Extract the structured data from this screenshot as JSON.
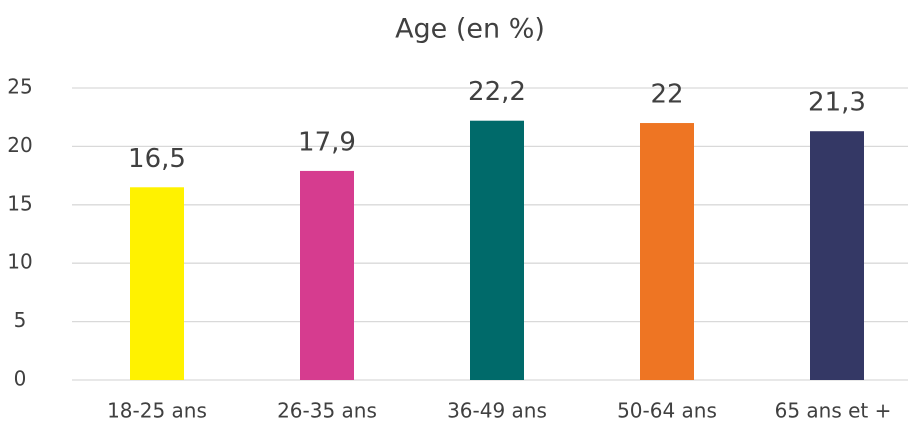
{
  "chart_data": {
    "type": "bar",
    "title": "Age (en %)",
    "categories": [
      "18-25 ans",
      "26-35 ans",
      "36-49 ans",
      "50-64 ans",
      "65 ans et +"
    ],
    "values": [
      16.5,
      17.9,
      22.2,
      22,
      21.3
    ],
    "value_labels": [
      "16,5",
      "17,9",
      "22,2",
      "22",
      "21,3"
    ],
    "colors": [
      "#fff200",
      "#d63c8f",
      "#006a6a",
      "#ee7523",
      "#343865"
    ],
    "ylim": [
      0,
      25
    ],
    "yticks": [
      0,
      5,
      10,
      15,
      20,
      25
    ],
    "grid": true
  }
}
